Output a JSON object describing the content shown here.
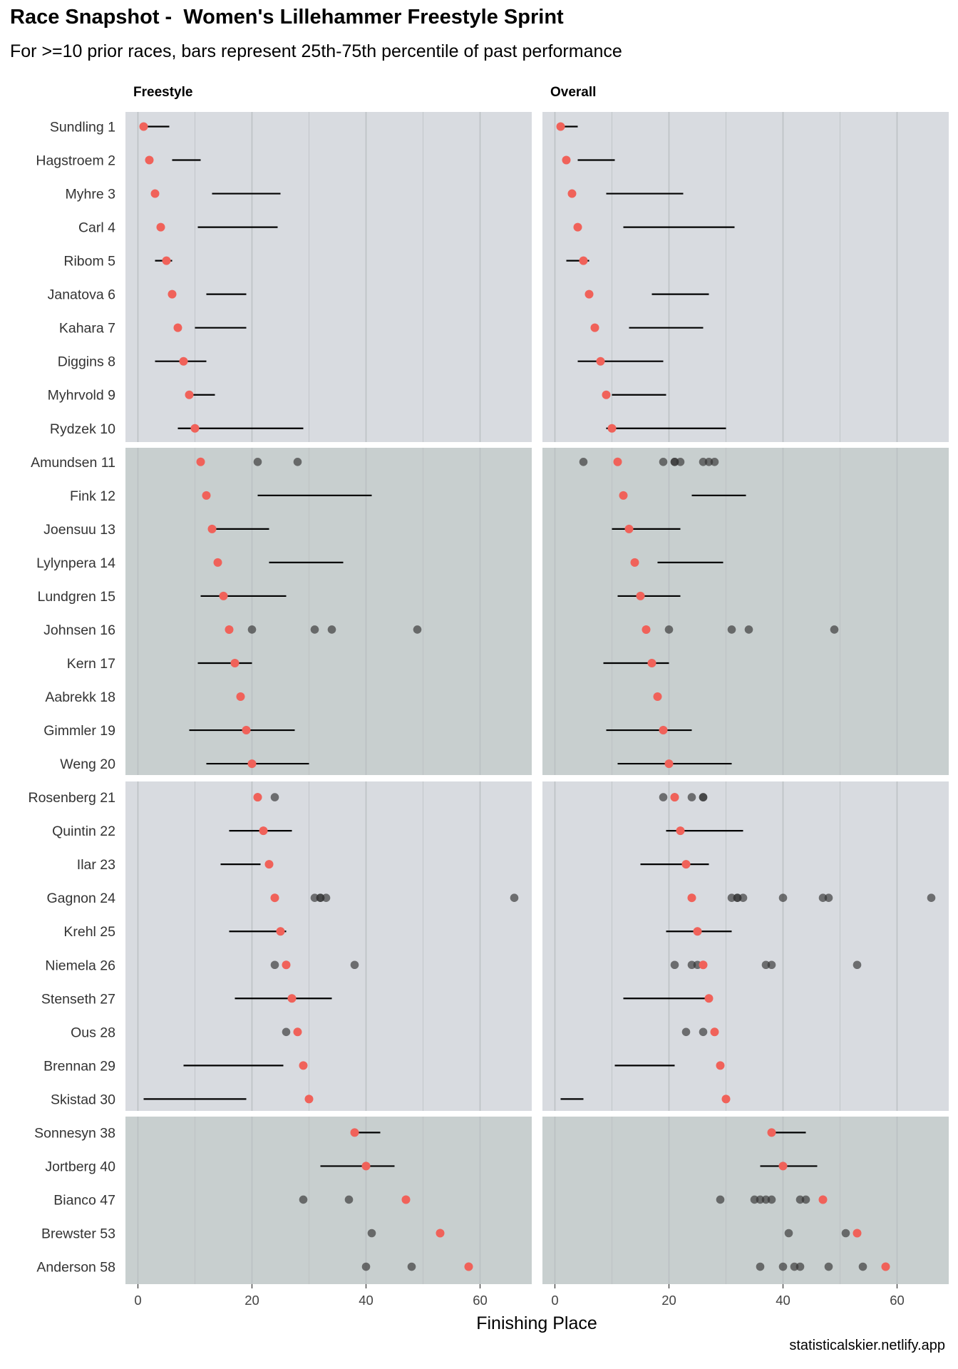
{
  "title": "Race Snapshot -  Women's Lillehammer Freestyle Sprint",
  "subtitle": "For >=10 prior races, bars represent 25th-75th percentile of past performance",
  "caption": "statisticalskier.netlify.app",
  "colors": {
    "band_light": "#d8dbe0",
    "band_dark": "#c8cfcf",
    "current_place": "#f0625a",
    "past_race": "#333333",
    "iqr_bar": "#000000",
    "gridline": "#b9bfc1"
  },
  "chart_data": {
    "type": "scatter",
    "xlabel": "Finishing Place",
    "ylabel": "",
    "xlim": [
      -2,
      69
    ],
    "x_ticks": [
      0,
      20,
      40,
      60
    ],
    "grid": true,
    "facets": [
      "Freestyle",
      "Overall"
    ],
    "band_groups": [
      10,
      10,
      10,
      5
    ],
    "athletes": [
      {
        "label": "Sundling 1",
        "place": 1,
        "freestyle": {
          "iqr": [
            1.5,
            5.5
          ],
          "past": []
        },
        "overall": {
          "iqr": [
            1.5,
            4
          ],
          "past": []
        }
      },
      {
        "label": "Hagstroem 2",
        "place": 2,
        "freestyle": {
          "iqr": [
            6,
            11
          ],
          "past": []
        },
        "overall": {
          "iqr": [
            4,
            10.5
          ],
          "past": []
        }
      },
      {
        "label": "Myhre 3",
        "place": 3,
        "freestyle": {
          "iqr": [
            13,
            25
          ],
          "past": []
        },
        "overall": {
          "iqr": [
            9,
            22.5
          ],
          "past": []
        }
      },
      {
        "label": "Carl 4",
        "place": 4,
        "freestyle": {
          "iqr": [
            10.5,
            24.5
          ],
          "past": []
        },
        "overall": {
          "iqr": [
            12,
            31.5
          ],
          "past": []
        }
      },
      {
        "label": "Ribom 5",
        "place": 5,
        "freestyle": {
          "iqr": [
            3,
            6
          ],
          "past": []
        },
        "overall": {
          "iqr": [
            2,
            6
          ],
          "past": []
        }
      },
      {
        "label": "Janatova 6",
        "place": 6,
        "freestyle": {
          "iqr": [
            12,
            19
          ],
          "past": []
        },
        "overall": {
          "iqr": [
            17,
            27
          ],
          "past": []
        }
      },
      {
        "label": "Kahara 7",
        "place": 7,
        "freestyle": {
          "iqr": [
            10,
            19
          ],
          "past": []
        },
        "overall": {
          "iqr": [
            13,
            26
          ],
          "past": []
        }
      },
      {
        "label": "Diggins 8",
        "place": 8,
        "freestyle": {
          "iqr": [
            3,
            12
          ],
          "past": []
        },
        "overall": {
          "iqr": [
            4,
            19
          ],
          "past": []
        }
      },
      {
        "label": "Myhrvold 9",
        "place": 9,
        "freestyle": {
          "iqr": [
            9,
            13.5
          ],
          "past": []
        },
        "overall": {
          "iqr": [
            10,
            19.5
          ],
          "past": []
        }
      },
      {
        "label": "Rydzek 10",
        "place": 10,
        "freestyle": {
          "iqr": [
            7,
            29
          ],
          "past": []
        },
        "overall": {
          "iqr": [
            9,
            30
          ],
          "past": []
        }
      },
      {
        "label": "Amundsen 11",
        "place": 11,
        "freestyle": {
          "iqr": null,
          "past": [
            21,
            28
          ]
        },
        "overall": {
          "iqr": null,
          "past": [
            5,
            19,
            21,
            21,
            22,
            26,
            27,
            28
          ]
        }
      },
      {
        "label": "Fink 12",
        "place": 12,
        "freestyle": {
          "iqr": [
            21,
            41
          ],
          "past": []
        },
        "overall": {
          "iqr": [
            24,
            33.5
          ],
          "past": []
        }
      },
      {
        "label": "Joensuu 13",
        "place": 13,
        "freestyle": {
          "iqr": [
            13,
            23
          ],
          "past": []
        },
        "overall": {
          "iqr": [
            10,
            22
          ],
          "past": []
        }
      },
      {
        "label": "Lylynpera 14",
        "place": 14,
        "freestyle": {
          "iqr": [
            23,
            36
          ],
          "past": []
        },
        "overall": {
          "iqr": [
            18,
            29.5
          ],
          "past": []
        }
      },
      {
        "label": "Lundgren 15",
        "place": 15,
        "freestyle": {
          "iqr": [
            11,
            26
          ],
          "past": []
        },
        "overall": {
          "iqr": [
            11,
            22
          ],
          "past": []
        }
      },
      {
        "label": "Johnsen 16",
        "place": 16,
        "freestyle": {
          "iqr": null,
          "past": [
            20,
            31,
            34,
            49
          ]
        },
        "overall": {
          "iqr": null,
          "past": [
            20,
            31,
            34,
            49
          ]
        }
      },
      {
        "label": "Kern 17",
        "place": 17,
        "freestyle": {
          "iqr": [
            10.5,
            20
          ],
          "past": []
        },
        "overall": {
          "iqr": [
            8.5,
            20
          ],
          "past": []
        }
      },
      {
        "label": "Aabrekk 18",
        "place": 18,
        "freestyle": {
          "iqr": null,
          "past": []
        },
        "overall": {
          "iqr": null,
          "past": []
        }
      },
      {
        "label": "Gimmler 19",
        "place": 19,
        "freestyle": {
          "iqr": [
            9,
            27.5
          ],
          "past": []
        },
        "overall": {
          "iqr": [
            9,
            24
          ],
          "past": []
        }
      },
      {
        "label": "Weng 20",
        "place": 20,
        "freestyle": {
          "iqr": [
            12,
            30
          ],
          "past": []
        },
        "overall": {
          "iqr": [
            11,
            31
          ],
          "past": []
        }
      },
      {
        "label": "Rosenberg 21",
        "place": 21,
        "freestyle": {
          "iqr": null,
          "past": [
            21,
            24
          ]
        },
        "overall": {
          "iqr": null,
          "past": [
            19,
            21,
            24,
            26,
            26
          ]
        }
      },
      {
        "label": "Quintin 22",
        "place": 22,
        "freestyle": {
          "iqr": [
            16,
            27
          ],
          "past": []
        },
        "overall": {
          "iqr": [
            19.5,
            33
          ],
          "past": []
        }
      },
      {
        "label": "Ilar 23",
        "place": 23,
        "freestyle": {
          "iqr": [
            14.5,
            21.5
          ],
          "past": []
        },
        "overall": {
          "iqr": [
            15,
            27
          ],
          "past": []
        }
      },
      {
        "label": "Gagnon 24",
        "place": 24,
        "freestyle": {
          "iqr": null,
          "past": [
            31,
            32,
            32,
            33,
            66
          ]
        },
        "overall": {
          "iqr": null,
          "past": [
            31,
            32,
            32,
            33,
            40,
            47,
            48,
            66
          ]
        }
      },
      {
        "label": "Krehl 25",
        "place": 25,
        "freestyle": {
          "iqr": [
            16,
            26
          ],
          "past": []
        },
        "overall": {
          "iqr": [
            19.5,
            31
          ],
          "past": []
        }
      },
      {
        "label": "Niemela 26",
        "place": 26,
        "freestyle": {
          "iqr": null,
          "past": [
            24,
            38
          ]
        },
        "overall": {
          "iqr": null,
          "past": [
            21,
            24,
            25,
            37,
            38,
            53
          ]
        }
      },
      {
        "label": "Stenseth 27",
        "place": 27,
        "freestyle": {
          "iqr": [
            17,
            34
          ],
          "past": []
        },
        "overall": {
          "iqr": [
            12,
            27
          ],
          "past": []
        }
      },
      {
        "label": "Ous 28",
        "place": 28,
        "freestyle": {
          "iqr": null,
          "past": [
            26
          ]
        },
        "overall": {
          "iqr": null,
          "past": [
            23,
            26
          ]
        }
      },
      {
        "label": "Brennan 29",
        "place": 29,
        "freestyle": {
          "iqr": [
            8,
            25.5
          ],
          "past": []
        },
        "overall": {
          "iqr": [
            10.5,
            21
          ],
          "past": []
        }
      },
      {
        "label": "Skistad 30",
        "place": 30,
        "freestyle": {
          "iqr": [
            1,
            19
          ],
          "past": []
        },
        "overall": {
          "iqr": [
            1,
            5
          ],
          "past": []
        }
      },
      {
        "label": "Sonnesyn 38",
        "place": 38,
        "freestyle": {
          "iqr": [
            38,
            42.5
          ],
          "past": []
        },
        "overall": {
          "iqr": [
            38,
            44
          ],
          "past": []
        }
      },
      {
        "label": "Jortberg 40",
        "place": 40,
        "freestyle": {
          "iqr": [
            32,
            45
          ],
          "past": []
        },
        "overall": {
          "iqr": [
            36,
            46
          ],
          "past": []
        }
      },
      {
        "label": "Bianco 47",
        "place": 47,
        "freestyle": {
          "iqr": null,
          "past": [
            29,
            37
          ]
        },
        "overall": {
          "iqr": null,
          "past": [
            29,
            35,
            36,
            37,
            38,
            43,
            44
          ]
        }
      },
      {
        "label": "Brewster 53",
        "place": 53,
        "freestyle": {
          "iqr": null,
          "past": [
            41
          ]
        },
        "overall": {
          "iqr": null,
          "past": [
            41,
            51
          ]
        }
      },
      {
        "label": "Anderson 58",
        "place": 58,
        "freestyle": {
          "iqr": null,
          "past": [
            40,
            48
          ]
        },
        "overall": {
          "iqr": null,
          "past": [
            36,
            40,
            42,
            43,
            48,
            54
          ]
        }
      }
    ]
  }
}
